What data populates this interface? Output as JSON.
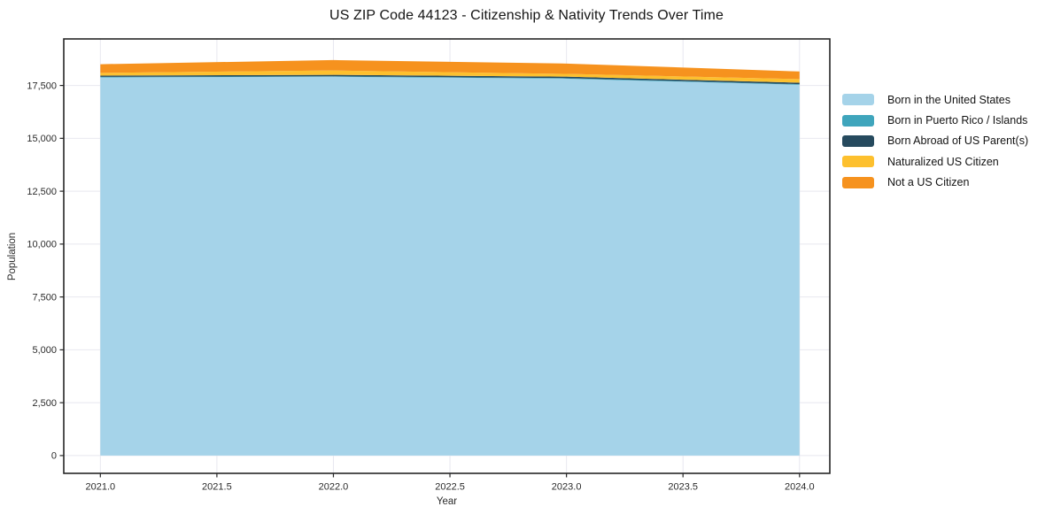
{
  "chart_data": {
    "type": "area",
    "stacked": true,
    "title": "US ZIP Code 44123 - Citizenship & Nativity Trends Over Time",
    "xlabel": "Year",
    "ylabel": "Population",
    "x": [
      2021,
      2022,
      2023,
      2024
    ],
    "series": [
      {
        "name": "Born in the United States",
        "color": "#a5d3e9",
        "values": [
          17880,
          17910,
          17820,
          17530
        ]
      },
      {
        "name": "Born in Puerto Rico / Islands",
        "color": "#3fa5bc",
        "values": [
          25,
          25,
          25,
          30
        ]
      },
      {
        "name": "Born Abroad of US Parent(s)",
        "color": "#264a5e",
        "values": [
          60,
          65,
          70,
          70
        ]
      },
      {
        "name": "Naturalized US Citizen",
        "color": "#fdc02e",
        "values": [
          130,
          210,
          130,
          170
        ]
      },
      {
        "name": "Not a US Citizen",
        "color": "#f6921e",
        "values": [
          410,
          490,
          490,
          360
        ]
      }
    ],
    "totals_by_year": [
      18505,
      18700,
      18535,
      18160
    ],
    "x_ticks": [
      2021.0,
      2021.5,
      2022.0,
      2022.5,
      2023.0,
      2023.5,
      2024.0
    ],
    "x_tick_labels": [
      "2021.0",
      "2021.5",
      "2022.0",
      "2022.5",
      "2023.0",
      "2023.5",
      "2024.0"
    ],
    "y_ticks": [
      0,
      2500,
      5000,
      7500,
      10000,
      12500,
      15000,
      17500
    ],
    "y_tick_labels": [
      "0",
      "2,500",
      "5,000",
      "7,500",
      "10,000",
      "12,500",
      "15,000",
      "17,500"
    ],
    "xlim": [
      2020.843,
      2024.13
    ],
    "ylim": [
      -840,
      19700
    ],
    "grid": true,
    "legend_position": "right-outside"
  },
  "colors": {
    "background": "#ffffff",
    "gridline": "#e8e8ef",
    "spine": "#262626",
    "tick_text": "#2b2b2b",
    "title_text": "#151515"
  }
}
